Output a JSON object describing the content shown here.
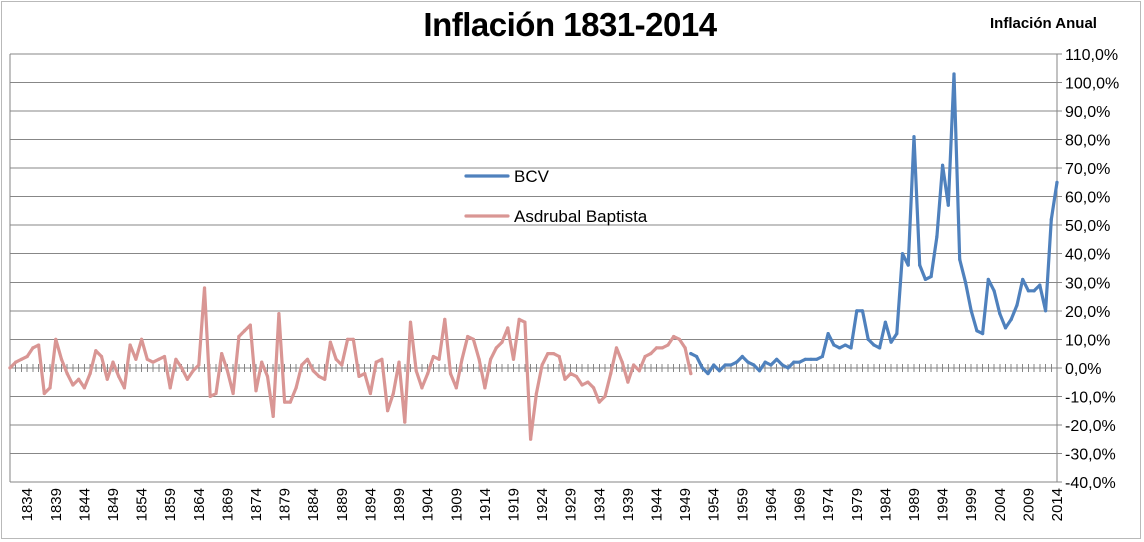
{
  "chart_data": {
    "type": "line",
    "title": "Inflación 1831-2014",
    "ylabel": "Inflación Anual",
    "xlabel": "",
    "ylim": [
      -40,
      110
    ],
    "y_tick_step": 10,
    "y_tick_labels": [
      "110,0%",
      "100,0%",
      "90,0%",
      "80,0%",
      "70,0%",
      "60,0%",
      "50,0%",
      "40,0%",
      "30,0%",
      "20,0%",
      "10,0%",
      "0,0%",
      "-10,0%",
      "-20,0%",
      "-30,0%",
      "-40,0%"
    ],
    "x_range": [
      1831,
      2014
    ],
    "x_tick_labels": [
      "1834",
      "1839",
      "1844",
      "1849",
      "1854",
      "1859",
      "1864",
      "1869",
      "1874",
      "1879",
      "1884",
      "1889",
      "1894",
      "1899",
      "1904",
      "1909",
      "1914",
      "1919",
      "1924",
      "1929",
      "1934",
      "1939",
      "1944",
      "1949",
      "1954",
      "1959",
      "1964",
      "1969",
      "1974",
      "1979",
      "1984",
      "1989",
      "1994",
      "1999",
      "2004",
      "2009",
      "2014"
    ],
    "grid": true,
    "legend_position": "center-left",
    "series": [
      {
        "name": "BCV",
        "color": "#4f81bd",
        "x": [
          1950,
          1951,
          1952,
          1953,
          1954,
          1955,
          1956,
          1957,
          1958,
          1959,
          1960,
          1961,
          1962,
          1963,
          1964,
          1965,
          1966,
          1967,
          1968,
          1969,
          1970,
          1971,
          1972,
          1973,
          1974,
          1975,
          1976,
          1977,
          1978,
          1979,
          1980,
          1981,
          1982,
          1983,
          1984,
          1985,
          1986,
          1987,
          1988,
          1989,
          1990,
          1991,
          1992,
          1993,
          1994,
          1995,
          1996,
          1997,
          1998,
          1999,
          2000,
          2001,
          2002,
          2003,
          2004,
          2005,
          2006,
          2007,
          2008,
          2009,
          2010,
          2011,
          2012,
          2013,
          2014
        ],
        "values": [
          5,
          4,
          0,
          -2,
          1,
          -1,
          1,
          1,
          2,
          4,
          2,
          1,
          -1,
          2,
          1,
          3,
          1,
          0,
          2,
          2,
          3,
          3,
          3,
          4,
          12,
          8,
          7,
          8,
          7,
          20,
          20,
          10,
          8,
          7,
          16,
          9,
          12,
          40,
          36,
          81,
          36,
          31,
          32,
          46,
          71,
          57,
          103,
          38,
          30,
          20,
          13,
          12,
          31,
          27,
          19,
          14,
          17,
          22,
          31,
          27,
          27,
          29,
          20,
          52,
          65
        ]
      },
      {
        "name": "Asdrubal Baptista",
        "color": "#d99694",
        "x": [
          1831,
          1832,
          1833,
          1834,
          1835,
          1836,
          1837,
          1838,
          1839,
          1840,
          1841,
          1842,
          1843,
          1844,
          1845,
          1846,
          1847,
          1848,
          1849,
          1850,
          1851,
          1852,
          1853,
          1854,
          1855,
          1856,
          1857,
          1858,
          1859,
          1860,
          1861,
          1862,
          1863,
          1864,
          1865,
          1866,
          1867,
          1868,
          1869,
          1870,
          1871,
          1872,
          1873,
          1874,
          1875,
          1876,
          1877,
          1878,
          1879,
          1880,
          1881,
          1882,
          1883,
          1884,
          1885,
          1886,
          1887,
          1888,
          1889,
          1890,
          1891,
          1892,
          1893,
          1894,
          1895,
          1896,
          1897,
          1898,
          1899,
          1900,
          1901,
          1902,
          1903,
          1904,
          1905,
          1906,
          1907,
          1908,
          1909,
          1910,
          1911,
          1912,
          1913,
          1914,
          1915,
          1916,
          1917,
          1918,
          1919,
          1920,
          1921,
          1922,
          1923,
          1924,
          1925,
          1926,
          1927,
          1928,
          1929,
          1930,
          1931,
          1932,
          1933,
          1934,
          1935,
          1936,
          1937,
          1938,
          1939,
          1940,
          1941,
          1942,
          1943,
          1944,
          1945,
          1946,
          1947,
          1948,
          1949,
          1950
        ],
        "values": [
          0,
          2,
          3,
          4,
          7,
          8,
          -9,
          -7,
          10,
          3,
          -2,
          -6,
          -4,
          -7,
          -2,
          6,
          4,
          -4,
          2,
          -3,
          -7,
          8,
          3,
          10,
          3,
          2,
          3,
          4,
          -7,
          3,
          0,
          -4,
          -1,
          1,
          28,
          -10,
          -9,
          5,
          -1,
          -9,
          11,
          13,
          15,
          -8,
          2,
          -3,
          -17,
          19,
          -12,
          -12,
          -7,
          1,
          3,
          -1,
          -3,
          -4,
          9,
          3,
          1,
          10,
          10,
          -3,
          -2,
          -9,
          2,
          3,
          -15,
          -9,
          2,
          -19,
          16,
          -1,
          -7,
          -2,
          4,
          3,
          17,
          -2,
          -7,
          3,
          11,
          10,
          3,
          -7,
          3,
          7,
          9,
          14,
          3,
          17,
          16,
          -25,
          -9,
          1,
          5,
          5,
          4,
          -4,
          -2,
          -3,
          -6,
          -5,
          -7,
          -12,
          -10,
          -2,
          7,
          2,
          -5,
          1,
          -1,
          4,
          5,
          7,
          7,
          8,
          11,
          10,
          7,
          -2
        ]
      }
    ]
  }
}
